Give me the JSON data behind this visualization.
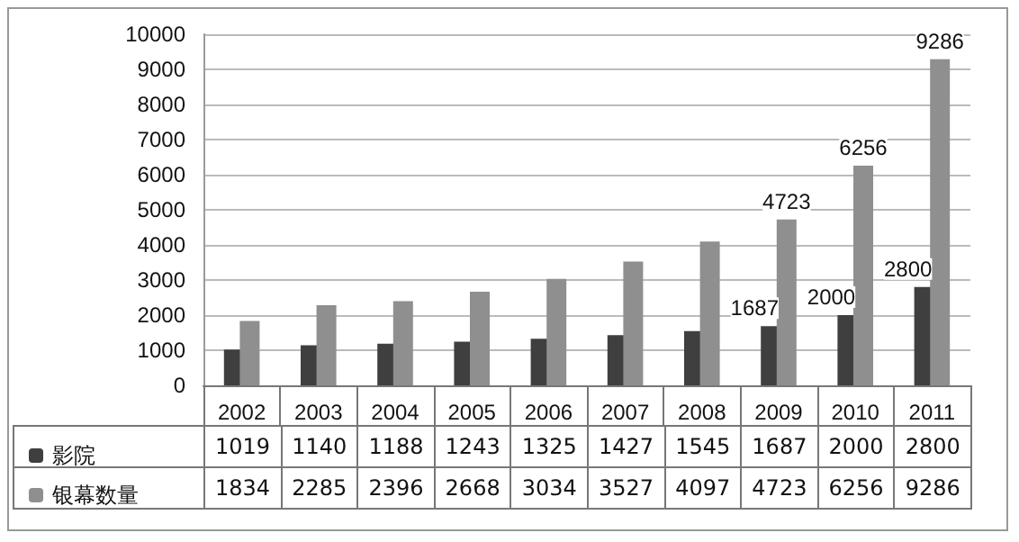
{
  "chart_data": {
    "type": "bar",
    "categories": [
      "2002",
      "2003",
      "2004",
      "2005",
      "2006",
      "2007",
      "2008",
      "2009",
      "2010",
      "2011"
    ],
    "series": [
      {
        "name": "影院",
        "color": "#3f3f3f",
        "values": [
          1019,
          1140,
          1188,
          1243,
          1325,
          1427,
          1545,
          1687,
          2000,
          2800
        ],
        "value_labels": [
          "1019",
          "1140",
          "1188",
          "1243",
          "1325",
          "1427",
          "1545",
          "1687",
          "2000",
          "2800"
        ]
      },
      {
        "name": "银幕数量",
        "color": "#8f8f8f",
        "values": [
          1834,
          2285,
          2396,
          2668,
          3034,
          3527,
          4097,
          4723,
          6256,
          9286
        ],
        "value_labels": [
          "1834",
          "2285",
          "2396",
          "2668",
          "3034",
          "3527",
          "4097",
          "4723",
          "6256",
          "9286"
        ]
      }
    ],
    "annotations": [
      {
        "text": "1687",
        "x": "2009",
        "y": 1687
      },
      {
        "text": "2000",
        "x": "2010",
        "y": 2000
      },
      {
        "text": "2800",
        "x": "2011",
        "y": 2800
      },
      {
        "text": "4723",
        "x": "2009",
        "y": 4723
      },
      {
        "text": "6256",
        "x": "2010",
        "y": 6256
      },
      {
        "text": "9286",
        "x": "2011",
        "y": 9286
      }
    ],
    "ylim": [
      0,
      10000
    ],
    "yticks": [
      0,
      1000,
      2000,
      3000,
      4000,
      5000,
      6000,
      7000,
      8000,
      9000,
      10000
    ],
    "grid": "y",
    "legend": "bottom"
  }
}
